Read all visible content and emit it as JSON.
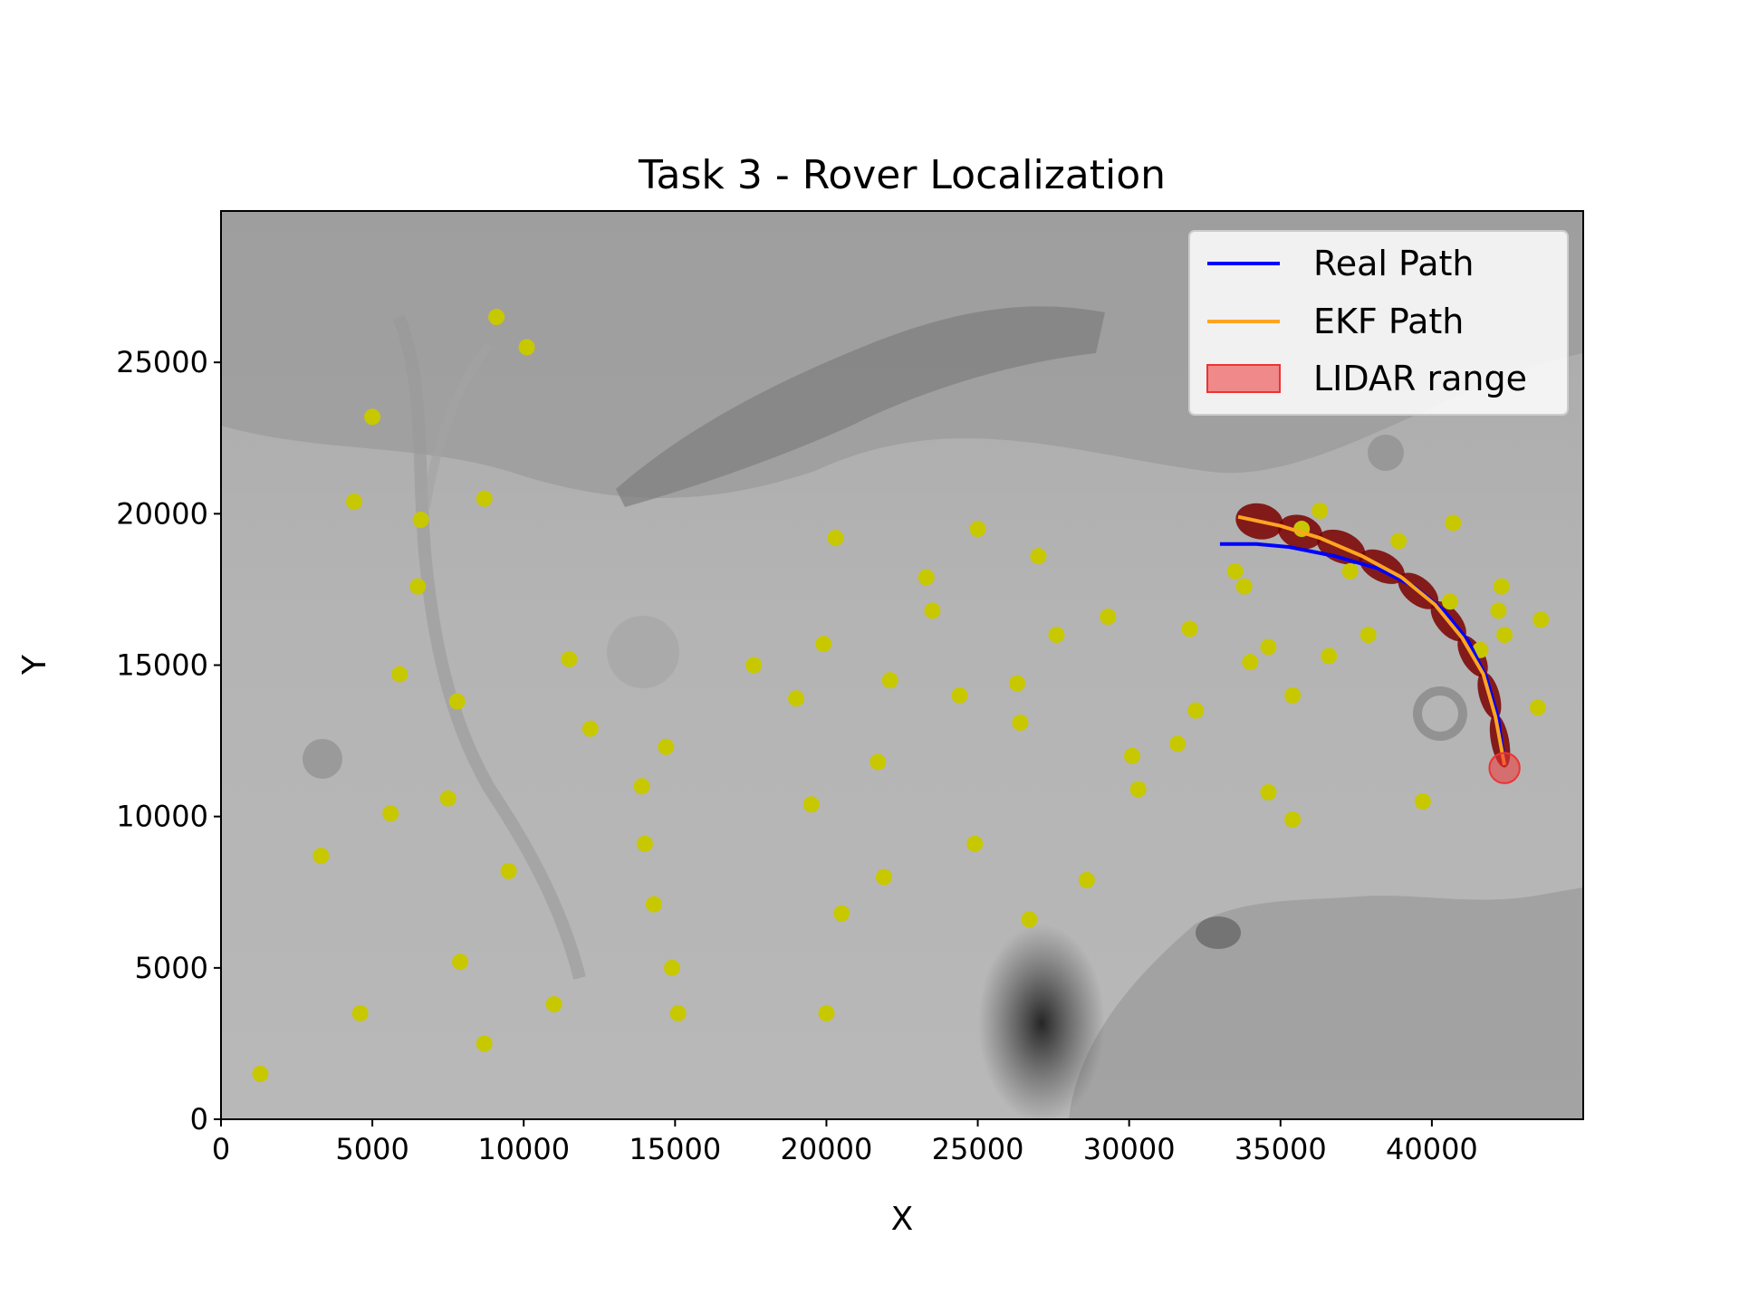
{
  "chart_data": {
    "type": "scatter",
    "title": "Task 3 - Rover Localization",
    "xlabel": "X",
    "ylabel": "Y",
    "xlim": [
      0,
      45000
    ],
    "ylim": [
      0,
      30000
    ],
    "xticks": [
      0,
      5000,
      10000,
      15000,
      20000,
      25000,
      30000,
      35000,
      40000
    ],
    "yticks": [
      0,
      5000,
      10000,
      15000,
      20000,
      25000
    ],
    "background": "grayscale Mars terrain map image",
    "legend_position": "upper right",
    "legend": [
      "Real Path",
      "EKF Path",
      "LIDAR range"
    ],
    "colors": {
      "real_path": "#0000ff",
      "ekf_path": "#ffa520",
      "lidar_range": "#ee3333",
      "landmarks": "#c8c800",
      "covariance": "#7a0000"
    },
    "series": [
      {
        "name": "Real Path",
        "type": "line",
        "points": [
          [
            42400,
            11700
          ],
          [
            42200,
            13200
          ],
          [
            41800,
            14600
          ],
          [
            41200,
            15800
          ],
          [
            40400,
            16800
          ],
          [
            39400,
            17600
          ],
          [
            38200,
            18200
          ],
          [
            36800,
            18600
          ],
          [
            35300,
            18900
          ],
          [
            34200,
            19000
          ],
          [
            33000,
            19000
          ]
        ]
      },
      {
        "name": "EKF Path",
        "type": "line",
        "points": [
          [
            42400,
            11700
          ],
          [
            42100,
            13300
          ],
          [
            41700,
            14700
          ],
          [
            41000,
            15900
          ],
          [
            40100,
            17000
          ],
          [
            39000,
            17900
          ],
          [
            37700,
            18600
          ],
          [
            36300,
            19200
          ],
          [
            35000,
            19600
          ],
          [
            33600,
            19900
          ]
        ]
      },
      {
        "name": "LIDAR range",
        "type": "circle",
        "center": [
          42400,
          11600
        ],
        "radius": 500
      },
      {
        "name": "landmarks",
        "type": "scatter",
        "points": [
          [
            1300,
            1500
          ],
          [
            3300,
            8700
          ],
          [
            4400,
            20400
          ],
          [
            4600,
            3500
          ],
          [
            5000,
            23200
          ],
          [
            5600,
            10100
          ],
          [
            5900,
            14700
          ],
          [
            6500,
            17600
          ],
          [
            6600,
            19800
          ],
          [
            7500,
            10600
          ],
          [
            7800,
            13800
          ],
          [
            7900,
            5200
          ],
          [
            8700,
            2500
          ],
          [
            8700,
            20500
          ],
          [
            9100,
            26500
          ],
          [
            9500,
            8200
          ],
          [
            10100,
            25500
          ],
          [
            11000,
            3800
          ],
          [
            11500,
            15200
          ],
          [
            12200,
            12900
          ],
          [
            13900,
            11000
          ],
          [
            14000,
            9100
          ],
          [
            14300,
            7100
          ],
          [
            14700,
            12300
          ],
          [
            14900,
            5000
          ],
          [
            15100,
            3500
          ],
          [
            17600,
            15000
          ],
          [
            19000,
            13900
          ],
          [
            19500,
            10400
          ],
          [
            19900,
            15700
          ],
          [
            20000,
            3500
          ],
          [
            20300,
            19200
          ],
          [
            20500,
            6800
          ],
          [
            21700,
            11800
          ],
          [
            21900,
            8000
          ],
          [
            22100,
            14500
          ],
          [
            23300,
            17900
          ],
          [
            23500,
            16800
          ],
          [
            24400,
            14000
          ],
          [
            24900,
            9100
          ],
          [
            25000,
            19500
          ],
          [
            26300,
            14400
          ],
          [
            26400,
            13100
          ],
          [
            26700,
            6600
          ],
          [
            27000,
            18600
          ],
          [
            27600,
            16000
          ],
          [
            28600,
            7900
          ],
          [
            29300,
            16600
          ],
          [
            30100,
            12000
          ],
          [
            30300,
            10900
          ],
          [
            31600,
            12400
          ],
          [
            32000,
            16200
          ],
          [
            32200,
            13500
          ],
          [
            33500,
            18100
          ],
          [
            33800,
            17600
          ],
          [
            34000,
            15100
          ],
          [
            34600,
            10800
          ],
          [
            34600,
            15600
          ],
          [
            35400,
            9900
          ],
          [
            35400,
            14000
          ],
          [
            35700,
            19500
          ],
          [
            36300,
            20100
          ],
          [
            36600,
            15300
          ],
          [
            37300,
            18100
          ],
          [
            37900,
            16000
          ],
          [
            38900,
            19100
          ],
          [
            39700,
            10500
          ],
          [
            40600,
            17100
          ],
          [
            40700,
            19700
          ],
          [
            41600,
            15500
          ],
          [
            42200,
            16800
          ],
          [
            42300,
            17600
          ],
          [
            42400,
            16000
          ],
          [
            43500,
            13600
          ],
          [
            43600,
            16500
          ]
        ]
      }
    ]
  }
}
